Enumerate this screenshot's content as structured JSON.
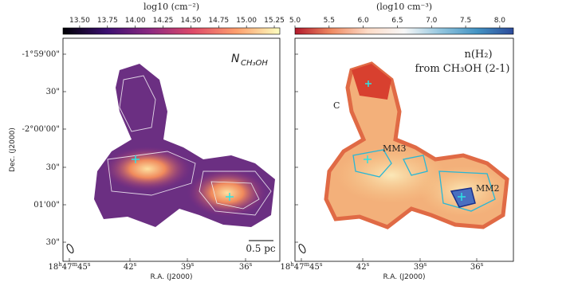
{
  "chart_data": [
    {
      "type": "map",
      "colorbar_label": "log10 (cm⁻²)",
      "clim": [
        13.35,
        15.3
      ],
      "cticks": [
        {
          "value": 13.5,
          "label": "13.50"
        },
        13.75,
        {
          "value": 14,
          "label": "14.00"
        },
        14.25,
        {
          "value": 14.5,
          "label": "14.50"
        },
        14.75,
        {
          "value": 15,
          "label": "15.00"
        },
        15.25
      ],
      "colormap": [
        "#000004",
        "#3b0f70",
        "#8c2981",
        "#de4968",
        "#fe9f6d",
        "#fcfdbf"
      ],
      "title": [
        "N",
        "CH₃OH"
      ],
      "annotations": [
        "0.5 pc"
      ]
    },
    {
      "type": "map",
      "colorbar_label": "(log10 cm⁻³)",
      "clim": [
        5.0,
        8.2
      ],
      "cticks": [
        {
          "value": 5,
          "label": "5.0"
        },
        5.5,
        {
          "value": 6,
          "label": "6.0"
        },
        6.5,
        {
          "value": 7,
          "label": "7.0"
        },
        7.5,
        {
          "value": 8,
          "label": "8.0"
        }
      ],
      "colormap": [
        "#b2182b",
        "#ef8a62",
        "#fddbc7",
        "#f7f7f7",
        "#92c5de",
        "#4393c3",
        "#2c4a9a"
      ],
      "title": [
        "n(H₂)",
        "from CH₃OH (2-1)"
      ],
      "annotations": [
        "C",
        "MM3",
        "MM2"
      ]
    }
  ],
  "axes": {
    "ylabel": "Dec. (J2000)",
    "xlabel": "R.A. (J2000)",
    "yticklabels": [
      "-1°59'00\"",
      "30\"",
      "-2°00'00\"",
      "30\"",
      "01'00\"",
      "30\""
    ],
    "xticklabels": [
      [
        {
          "text": "18"
        },
        {
          "text": "h",
          "sup": true
        },
        {
          "text": "47"
        },
        {
          "text": "m",
          "sup": true
        },
        {
          "text": "45"
        },
        {
          "text": "s",
          "sup": true
        }
      ],
      [
        {
          "text": "42"
        },
        {
          "text": "s",
          "sup": true
        }
      ],
      [
        {
          "text": "39"
        },
        {
          "text": "s",
          "sup": true
        }
      ],
      [
        {
          "text": "36"
        },
        {
          "text": "s",
          "sup": true
        }
      ]
    ]
  }
}
